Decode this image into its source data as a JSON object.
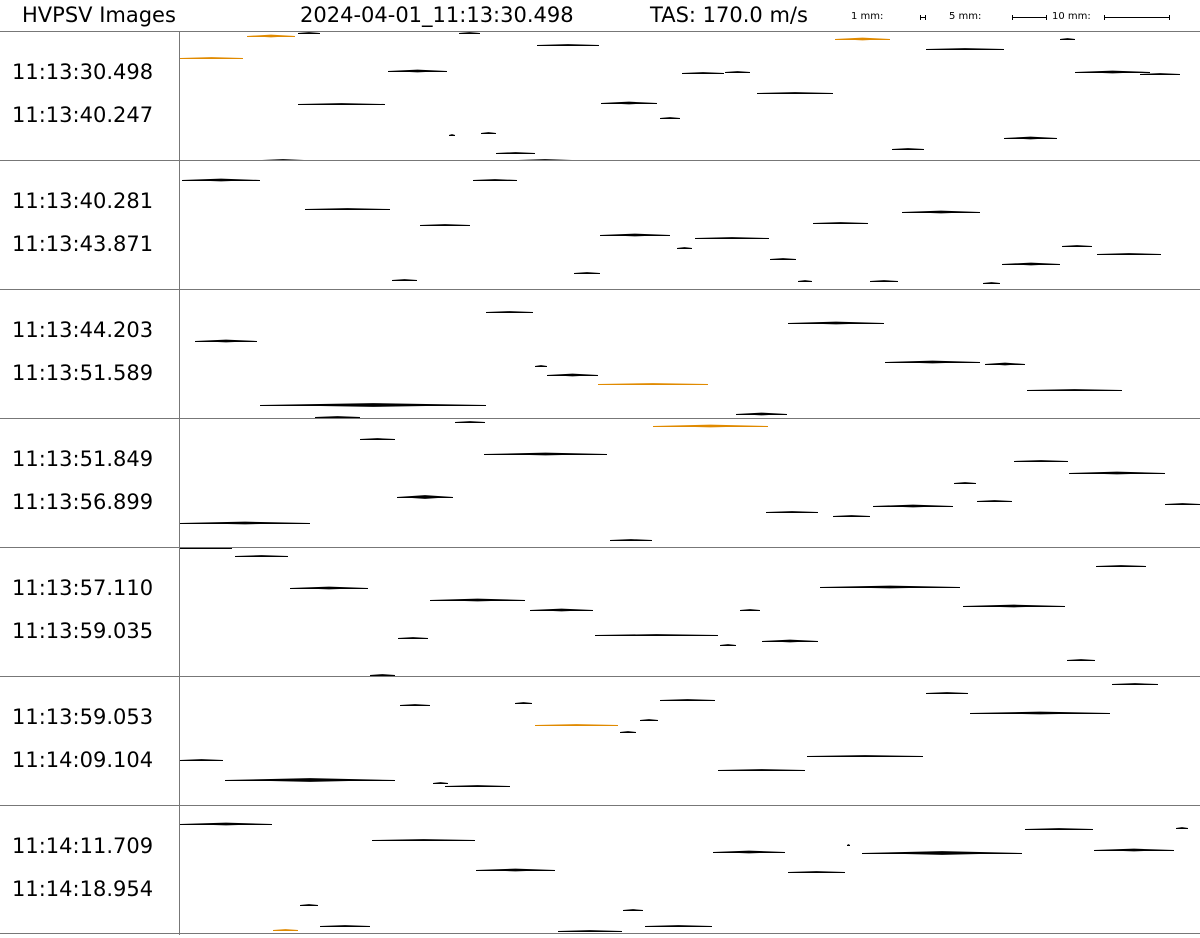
{
  "header": {
    "title": "HVPSV Images",
    "timestamp": "2024-04-01_11:13:30.498",
    "tas": "TAS: 170.0 m/s",
    "scale_1mm": "1 mm:",
    "scale_5mm": "5 mm:",
    "scale_10mm": "10 mm:"
  },
  "colors": {
    "particle": "#000000",
    "highlight": "#e08a00",
    "divider": "#777777"
  },
  "strips": [
    {
      "start": "11:13:30.498",
      "end": "11:13:40.247",
      "particles": [
        [
          0,
          27,
          63,
          1,
          1
        ],
        [
          67,
          5,
          115,
          2,
          1
        ],
        [
          118,
          2,
          140,
          1,
          0
        ],
        [
          279,
          2,
          300,
          1,
          0
        ],
        [
          357,
          14,
          419,
          1,
          0
        ],
        [
          655,
          8,
          710,
          2,
          1
        ],
        [
          208,
          40,
          267,
          2,
          0
        ],
        [
          502,
          42,
          544,
          1,
          0
        ],
        [
          577,
          62,
          653,
          1,
          0
        ],
        [
          421,
          72,
          477,
          2,
          0
        ],
        [
          118,
          73,
          205,
          1,
          0
        ],
        [
          480,
          87,
          500,
          1,
          0
        ],
        [
          301,
          102,
          316,
          1,
          0
        ],
        [
          269,
          104,
          275,
          1,
          0
        ],
        [
          824,
          107,
          877,
          2,
          0
        ],
        [
          316,
          122,
          355,
          1,
          0
        ],
        [
          82,
          129,
          124,
          1,
          0
        ],
        [
          338,
          129,
          392,
          1,
          0
        ],
        [
          712,
          118,
          744,
          1,
          0
        ],
        [
          746,
          18,
          824,
          1,
          0
        ],
        [
          880,
          8,
          895,
          1,
          0
        ],
        [
          895,
          41,
          970,
          2,
          0
        ],
        [
          545,
          41,
          570,
          1,
          0
        ],
        [
          960,
          43,
          1000,
          1,
          0
        ]
      ]
    },
    {
      "start": "11:13:40.281",
      "end": "11:13:43.871",
      "particles": [
        [
          2,
          20,
          80,
          2,
          0
        ],
        [
          125,
          49,
          210,
          1,
          0
        ],
        [
          240,
          65,
          290,
          1,
          0
        ],
        [
          293,
          20,
          337,
          1,
          0
        ],
        [
          633,
          63,
          688,
          1,
          0
        ],
        [
          722,
          52,
          800,
          2,
          0
        ],
        [
          420,
          75,
          490,
          2,
          0
        ],
        [
          515,
          78,
          589,
          1,
          0
        ],
        [
          497,
          88,
          512,
          1,
          0
        ],
        [
          882,
          86,
          912,
          1,
          0
        ],
        [
          917,
          94,
          981,
          1,
          0
        ],
        [
          822,
          104,
          880,
          2,
          0
        ],
        [
          590,
          99,
          616,
          1,
          0
        ],
        [
          394,
          113,
          420,
          1,
          0
        ],
        [
          212,
          120,
          237,
          1,
          0
        ],
        [
          618,
          121,
          632,
          1,
          0
        ],
        [
          690,
          121,
          718,
          1,
          0
        ],
        [
          803,
          123,
          820,
          1,
          0
        ]
      ]
    },
    {
      "start": "11:13:44.203",
      "end": "11:13:51.589",
      "particles": [
        [
          306,
          23,
          353,
          1,
          0
        ],
        [
          15,
          52,
          77,
          2,
          0
        ],
        [
          608,
          34,
          704,
          2,
          0
        ],
        [
          355,
          77,
          367,
          1,
          0
        ],
        [
          367,
          86,
          418,
          2,
          0
        ],
        [
          418,
          95,
          528,
          1,
          1
        ],
        [
          705,
          73,
          800,
          2,
          0
        ],
        [
          805,
          75,
          845,
          2,
          0
        ],
        [
          847,
          101,
          942,
          1,
          0
        ],
        [
          80,
          116,
          306,
          3,
          0
        ],
        [
          556,
          125,
          607,
          2,
          0
        ],
        [
          135,
          128,
          180,
          1,
          0
        ]
      ]
    },
    {
      "start": "11:13:51.849",
      "end": "11:13:56.899",
      "particles": [
        [
          275,
          4,
          305,
          1,
          0
        ],
        [
          180,
          21,
          215,
          1,
          0
        ],
        [
          473,
          8,
          588,
          2,
          1
        ],
        [
          304,
          36,
          427,
          2,
          0
        ],
        [
          834,
          43,
          888,
          1,
          0
        ],
        [
          889,
          55,
          985,
          2,
          0
        ],
        [
          774,
          65,
          796,
          1,
          0
        ],
        [
          217,
          79,
          273,
          3,
          0
        ],
        [
          797,
          83,
          832,
          1,
          0
        ],
        [
          586,
          94,
          638,
          1,
          0
        ],
        [
          693,
          88,
          773,
          2,
          0
        ],
        [
          985,
          86,
          1020,
          1,
          0
        ],
        [
          0,
          105,
          130,
          2,
          0
        ],
        [
          430,
          122,
          472,
          1,
          0
        ],
        [
          653,
          98,
          690,
          1,
          0
        ]
      ]
    },
    {
      "start": "11:13:57.110",
      "end": "11:13:59.035",
      "particles": [
        [
          0,
          1,
          52,
          1,
          0
        ],
        [
          55,
          9,
          108,
          1,
          0
        ],
        [
          968,
          0,
          990,
          1,
          0
        ],
        [
          916,
          19,
          966,
          1,
          0
        ],
        [
          110,
          41,
          188,
          2,
          0
        ],
        [
          640,
          40,
          780,
          2,
          0
        ],
        [
          250,
          53,
          345,
          2,
          0
        ],
        [
          350,
          63,
          413,
          2,
          0
        ],
        [
          783,
          59,
          885,
          2,
          0
        ],
        [
          560,
          63,
          580,
          1,
          0
        ],
        [
          415,
          88,
          538,
          1,
          0
        ],
        [
          540,
          98,
          556,
          1,
          0
        ],
        [
          582,
          94,
          638,
          2,
          0
        ],
        [
          218,
          91,
          248,
          1,
          0
        ],
        [
          887,
          113,
          915,
          1,
          0
        ],
        [
          190,
          128,
          215,
          1,
          0
        ]
      ]
    },
    {
      "start": "11:13:59.053",
      "end": "11:14:09.104",
      "particles": [
        [
          932,
          8,
          978,
          1,
          0
        ],
        [
          746,
          17,
          788,
          1,
          0
        ],
        [
          480,
          24,
          535,
          1,
          0
        ],
        [
          220,
          29,
          250,
          1,
          0
        ],
        [
          335,
          27,
          352,
          1,
          0
        ],
        [
          790,
          37,
          930,
          2,
          0
        ],
        [
          460,
          44,
          478,
          1,
          0
        ],
        [
          355,
          49,
          438,
          1,
          1
        ],
        [
          440,
          56,
          456,
          1,
          0
        ],
        [
          0,
          84,
          43,
          1,
          0
        ],
        [
          627,
          80,
          743,
          1,
          0
        ],
        [
          538,
          94,
          625,
          1,
          0
        ],
        [
          45,
          104,
          215,
          3,
          0
        ],
        [
          253,
          107,
          268,
          1,
          0
        ],
        [
          265,
          110,
          330,
          1,
          0
        ]
      ]
    },
    {
      "start": "11:14:11.709",
      "end": "11:14:18.954",
      "particles": [
        [
          0,
          19,
          92,
          2,
          0
        ],
        [
          845,
          24,
          913,
          1,
          0
        ],
        [
          996,
          23,
          1008,
          1,
          0
        ],
        [
          192,
          35,
          295,
          1,
          0
        ],
        [
          667,
          40,
          670,
          1,
          0
        ],
        [
          533,
          47,
          605,
          2,
          0
        ],
        [
          682,
          48,
          842,
          3,
          0
        ],
        [
          914,
          45,
          994,
          2,
          0
        ],
        [
          296,
          65,
          375,
          2,
          0
        ],
        [
          608,
          67,
          665,
          1,
          0
        ],
        [
          120,
          100,
          138,
          1,
          0
        ],
        [
          443,
          105,
          463,
          1,
          0
        ],
        [
          140,
          121,
          190,
          1,
          0
        ],
        [
          93,
          125,
          118,
          1,
          1
        ],
        [
          378,
          126,
          442,
          1,
          0
        ],
        [
          465,
          121,
          532,
          1,
          0
        ]
      ]
    }
  ]
}
